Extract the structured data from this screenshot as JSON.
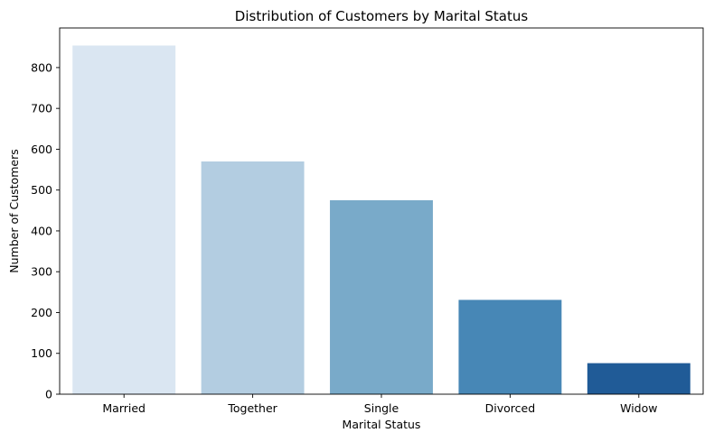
{
  "chart_data": {
    "type": "bar",
    "title": "Distribution of Customers by Marital Status",
    "xlabel": "Marital Status",
    "ylabel": "Number of Customers",
    "categories": [
      "Married",
      "Together",
      "Single",
      "Divorced",
      "Widow"
    ],
    "values": [
      854,
      570,
      475,
      231,
      76
    ],
    "colors": [
      "#dae6f2",
      "#b3cde1",
      "#79aac9",
      "#4787b6",
      "#205b97"
    ],
    "ylim": [
      0,
      897
    ],
    "yticks": [
      0,
      100,
      200,
      300,
      400,
      500,
      600,
      700,
      800
    ],
    "grid": false,
    "legend": "none"
  }
}
